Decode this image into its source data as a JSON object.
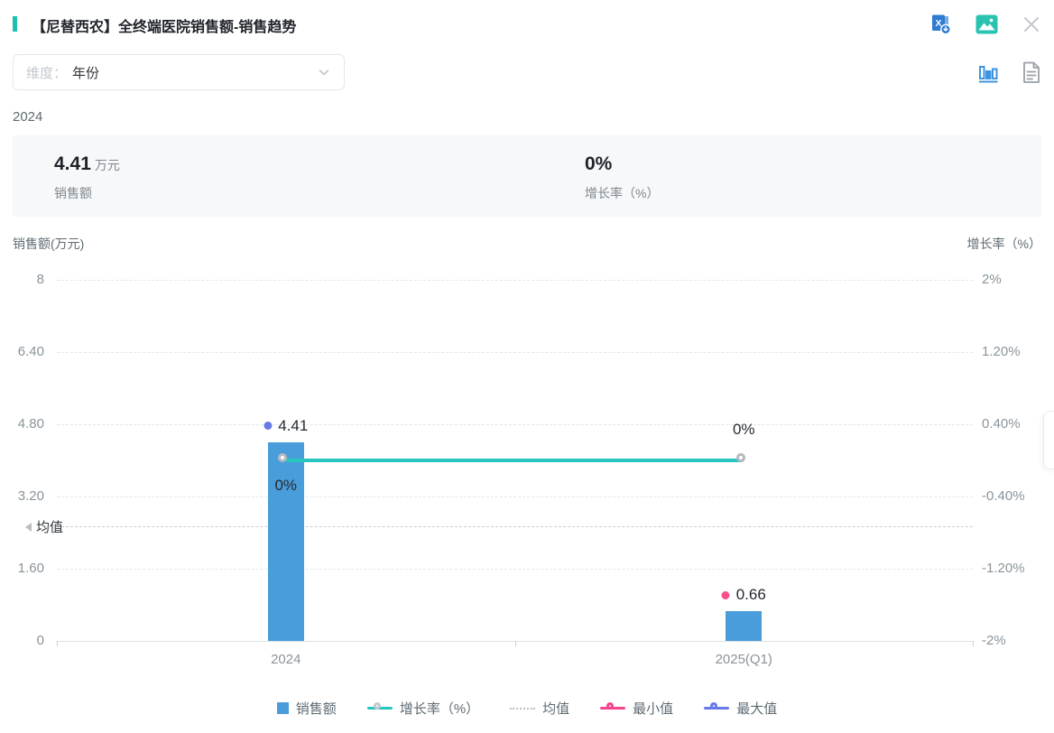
{
  "header": {
    "title": "【尼替西农】全终端医院销售额-销售趋势",
    "accent_color": "#1ec0ac",
    "icons": [
      "excel-download-icon",
      "image-export-icon",
      "close-icon"
    ]
  },
  "toolbar": {
    "dimension_label": "维度：",
    "dimension_value": "年份",
    "view_icons": [
      "bar-chart-view-icon",
      "table-view-icon"
    ]
  },
  "summary": {
    "period": "2024",
    "sales_value": "4.41",
    "sales_unit": "万元",
    "sales_label": "销售额",
    "growth_value": "0%",
    "growth_label": "增长率（%）"
  },
  "chart_data": {
    "type": "bar",
    "categories": [
      "2024",
      "2025(Q1)"
    ],
    "series": [
      {
        "name": "销售额",
        "type": "bar",
        "values": [
          4.41,
          0.66
        ],
        "color": "#4a9ddb",
        "axis": "left"
      },
      {
        "name": "增长率（%）",
        "type": "line",
        "values": [
          0,
          0
        ],
        "point_labels": [
          "0%",
          "0%"
        ],
        "color": "#27c6bf",
        "marker_ring": "#b3b9bf",
        "axis": "right"
      }
    ],
    "left_axis": {
      "title": "销售额(万元)",
      "ticks": [
        "8",
        "6.40",
        "4.80",
        "3.20",
        "1.60",
        "0"
      ],
      "max": 8,
      "min": 0
    },
    "right_axis": {
      "title": "增长率（%）",
      "ticks": [
        "2%",
        "1.20%",
        "0.40%",
        "-0.40%",
        "-1.20%",
        "-2%"
      ],
      "max": 2,
      "min": -2
    },
    "mean_line": {
      "label": "均值",
      "value": 2.535
    },
    "max_point": {
      "label": "4.41",
      "value": 4.41,
      "category_index": 0,
      "color": "#6679e8"
    },
    "min_point": {
      "label": "0.66",
      "value": 0.66,
      "category_index": 1,
      "color": "#f5508c"
    },
    "grid": true,
    "legend_position": "bottom",
    "legend": [
      {
        "label": "销售额",
        "type": "square",
        "color": "#4a9ddb"
      },
      {
        "label": "增长率（%）",
        "type": "line-marker",
        "color": "#27c6bf",
        "ring": "#c3c9ce"
      },
      {
        "label": "均值",
        "type": "dotted",
        "color": "#b9bfc4"
      },
      {
        "label": "最小值",
        "type": "ring",
        "color": "#f5458c"
      },
      {
        "label": "最大值",
        "type": "ring",
        "color": "#6679e8"
      }
    ]
  }
}
